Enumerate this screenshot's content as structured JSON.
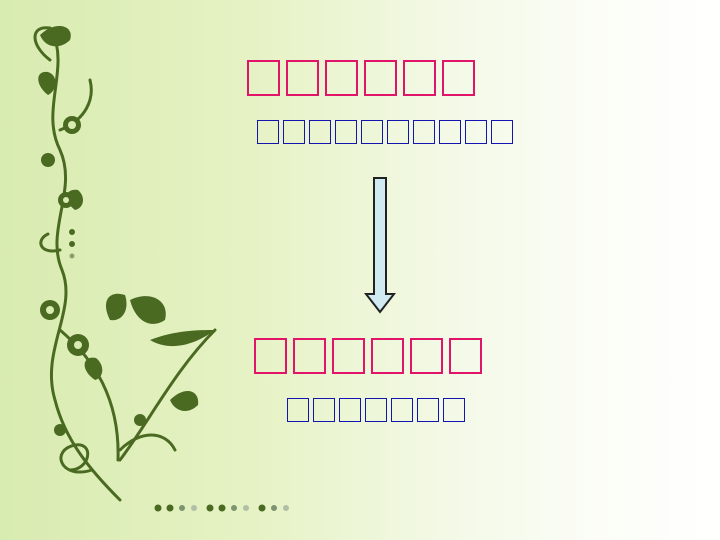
{
  "slide": {
    "heading_top": "□□□□□□",
    "subtitle_top": "□□□□□□□□□□",
    "heading_bottom": "□□□□□□",
    "subtitle_bottom": "□□□□□□□"
  },
  "icons": {
    "arrow": "arrow-down-icon",
    "decoration": "floral-vine-icon"
  },
  "colors": {
    "heading": "#e0156a",
    "subtitle": "#1414b0",
    "vine": "#4a6a22",
    "arrow_fill": "#cfeaf0",
    "background_left": "#d8ebb0",
    "background_right": "#ffffff"
  }
}
